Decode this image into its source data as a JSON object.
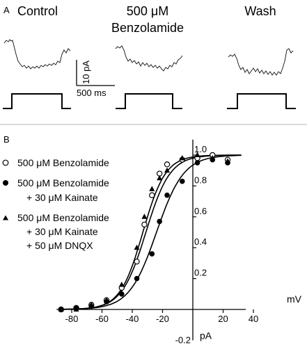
{
  "panel_a": {
    "letter": "A",
    "conditions": [
      {
        "title_lines": [
          "Control"
        ]
      },
      {
        "title_lines": [
          "500 μM",
          "Benzolamide"
        ]
      },
      {
        "title_lines": [
          "Wash"
        ]
      }
    ],
    "scale_bar": {
      "current_label": "10 pA",
      "time_label": "500 ms"
    }
  },
  "panel_b": {
    "letter": "B",
    "legend": [
      {
        "marker": "open-circle",
        "lines": [
          "500 μM Benzolamide"
        ]
      },
      {
        "marker": "filled-circle",
        "lines": [
          "500 μM Benzolamide",
          "+ 30 μM Kainate"
        ]
      },
      {
        "marker": "filled-triangle",
        "lines": [
          "500 μM Benzolamide",
          "+ 30 μM Kainate",
          "+ 50 μM DNQX"
        ]
      }
    ]
  },
  "chart_data": {
    "type": "scatter",
    "xlabel": "mV",
    "ylabel": "pA",
    "xlim": [
      -90,
      35
    ],
    "ylim": [
      -0.2,
      1.1
    ],
    "x_ticks": [
      -80,
      -60,
      -40,
      -20,
      20,
      40
    ],
    "y_ticks": [
      0.2,
      0.4,
      0.6,
      0.8,
      1.0
    ],
    "x_tick_labels": [
      "-80",
      "-60",
      "-40",
      "-20",
      "20",
      "40"
    ],
    "y_tick_labels": [
      "0.2",
      "0.4",
      "0.6",
      "0.8",
      "1.0"
    ],
    "y_bottom_label": "-0.2",
    "series": [
      {
        "marker": "open-circle",
        "x": [
          -87,
          -77,
          -67,
          -57,
          -47,
          -37,
          -32,
          -27,
          -22,
          -17,
          -7,
          3,
          13,
          23
        ],
        "y": [
          0.0,
          0.01,
          0.03,
          0.06,
          0.14,
          0.31,
          0.55,
          0.74,
          0.88,
          0.94,
          0.97,
          0.98,
          1.0,
          0.97
        ],
        "fit": {
          "v_half": -31,
          "slope": 8
        }
      },
      {
        "marker": "filled-circle",
        "x": [
          -87,
          -77,
          -67,
          -57,
          -47,
          -37,
          -27,
          -22,
          -17,
          -7,
          3,
          13,
          23
        ],
        "y": [
          0.0,
          0.01,
          0.02,
          0.05,
          0.1,
          0.2,
          0.36,
          0.57,
          0.74,
          0.83,
          0.95,
          0.97,
          0.95
        ],
        "fit": {
          "v_half": -24,
          "slope": 9
        }
      },
      {
        "marker": "filled-triangle",
        "x": [
          -87,
          -77,
          -67,
          -57,
          -47,
          -37,
          -32,
          -27,
          -22,
          -17,
          -7,
          3,
          13,
          23
        ],
        "y": [
          0.0,
          0.0,
          0.03,
          0.06,
          0.16,
          0.4,
          0.6,
          0.78,
          0.85,
          0.9,
          0.98,
          1.0,
          0.98,
          0.96
        ],
        "fit": {
          "v_half": -33,
          "slope": 7.5
        }
      }
    ]
  },
  "colors": {
    "ink": "#000000",
    "divider": "#b5b5b5",
    "background": "#ffffff"
  }
}
